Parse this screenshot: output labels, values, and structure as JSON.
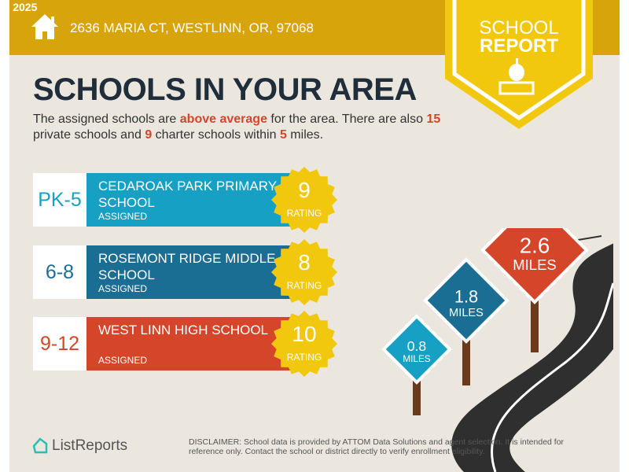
{
  "copyright": "© 2025",
  "address": "2636 MARIA CT, WESTLINN, OR, 97068",
  "badge": {
    "line1": "SCHOOL",
    "line2": "REPORT"
  },
  "title": "SCHOOLS IN YOUR AREA",
  "description": {
    "p1": "The assigned schools are ",
    "highlight": "above average",
    "p2": " for the area. There are also ",
    "private_count": "15",
    "p3": " private schools and ",
    "charter_count": "9",
    "p4": " charter schools within ",
    "miles": "5",
    "p5": " miles."
  },
  "schools": [
    {
      "grades": "PK-5",
      "name": "CEDAROAK PARK PRIMARY SCHOOL",
      "status": "ASSIGNED",
      "rating": "9",
      "rating_label": "RATING",
      "color": "#16a0c4"
    },
    {
      "grades": "6-8",
      "name": "ROSEMONT RIDGE MIDDLE SCHOOL",
      "status": "ASSIGNED",
      "rating": "8",
      "rating_label": "RATING",
      "color": "#1a6d93"
    },
    {
      "grades": "9-12",
      "name": "WEST LINN HIGH SCHOOL",
      "status": "ASSIGNED",
      "rating": "10",
      "rating_label": "RATING",
      "color": "#d5452a"
    }
  ],
  "signs": [
    {
      "distance": "0.8",
      "unit": "MILES",
      "color": "#16a0c4"
    },
    {
      "distance": "1.8",
      "unit": "MILES",
      "color": "#1a6d93"
    },
    {
      "distance": "2.6",
      "unit": "MILES",
      "color": "#d5452a"
    }
  ],
  "logo": "ListReports",
  "disclaimer": {
    "label": "DISCLAIMER:",
    "text": " School data is provided by ATTOM Data Solutions and agent selection. It is intended for reference only. Contact the school or district directly to verify enrollment eligibility."
  },
  "colors": {
    "topbar": "#d7a50b",
    "badge": "#f2c80f",
    "star": "#f2c80f",
    "background": "#ebe7df"
  }
}
